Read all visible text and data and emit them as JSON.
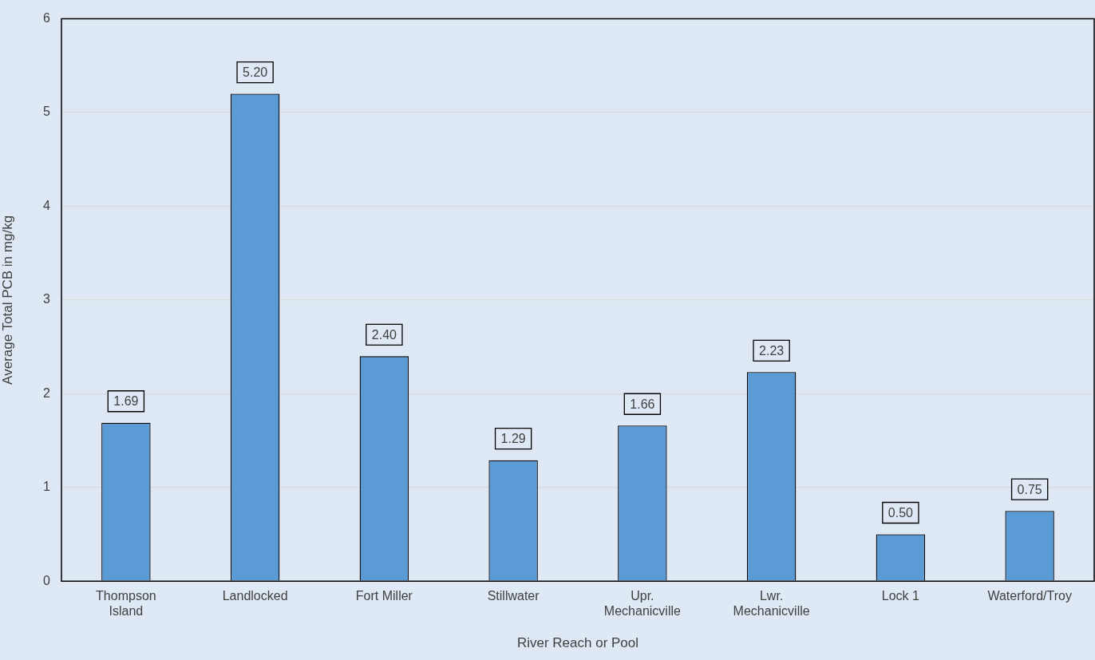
{
  "chart_data": {
    "type": "bar",
    "xlabel": "River Reach or Pool",
    "ylabel": "Average Total PCB in mg/kg",
    "categories": [
      "Thompson Island",
      "Landlocked",
      "Fort Miller",
      "Stillwater",
      "Upr. Mechanicville",
      "Lwr. Mechanicville",
      "Lock 1",
      "Waterford/Troy"
    ],
    "values": [
      1.69,
      5.2,
      2.4,
      1.29,
      1.66,
      2.23,
      0.5,
      0.75
    ],
    "value_labels": [
      "1.69",
      "5.20",
      "2.40",
      "1.29",
      "1.66",
      "2.23",
      "0.50",
      "0.75"
    ],
    "color": "#5b9bd5",
    "ylim": [
      0,
      6
    ],
    "yticks": [
      0,
      1,
      2,
      3,
      4,
      5,
      6
    ],
    "grid": "y",
    "legend": false
  }
}
